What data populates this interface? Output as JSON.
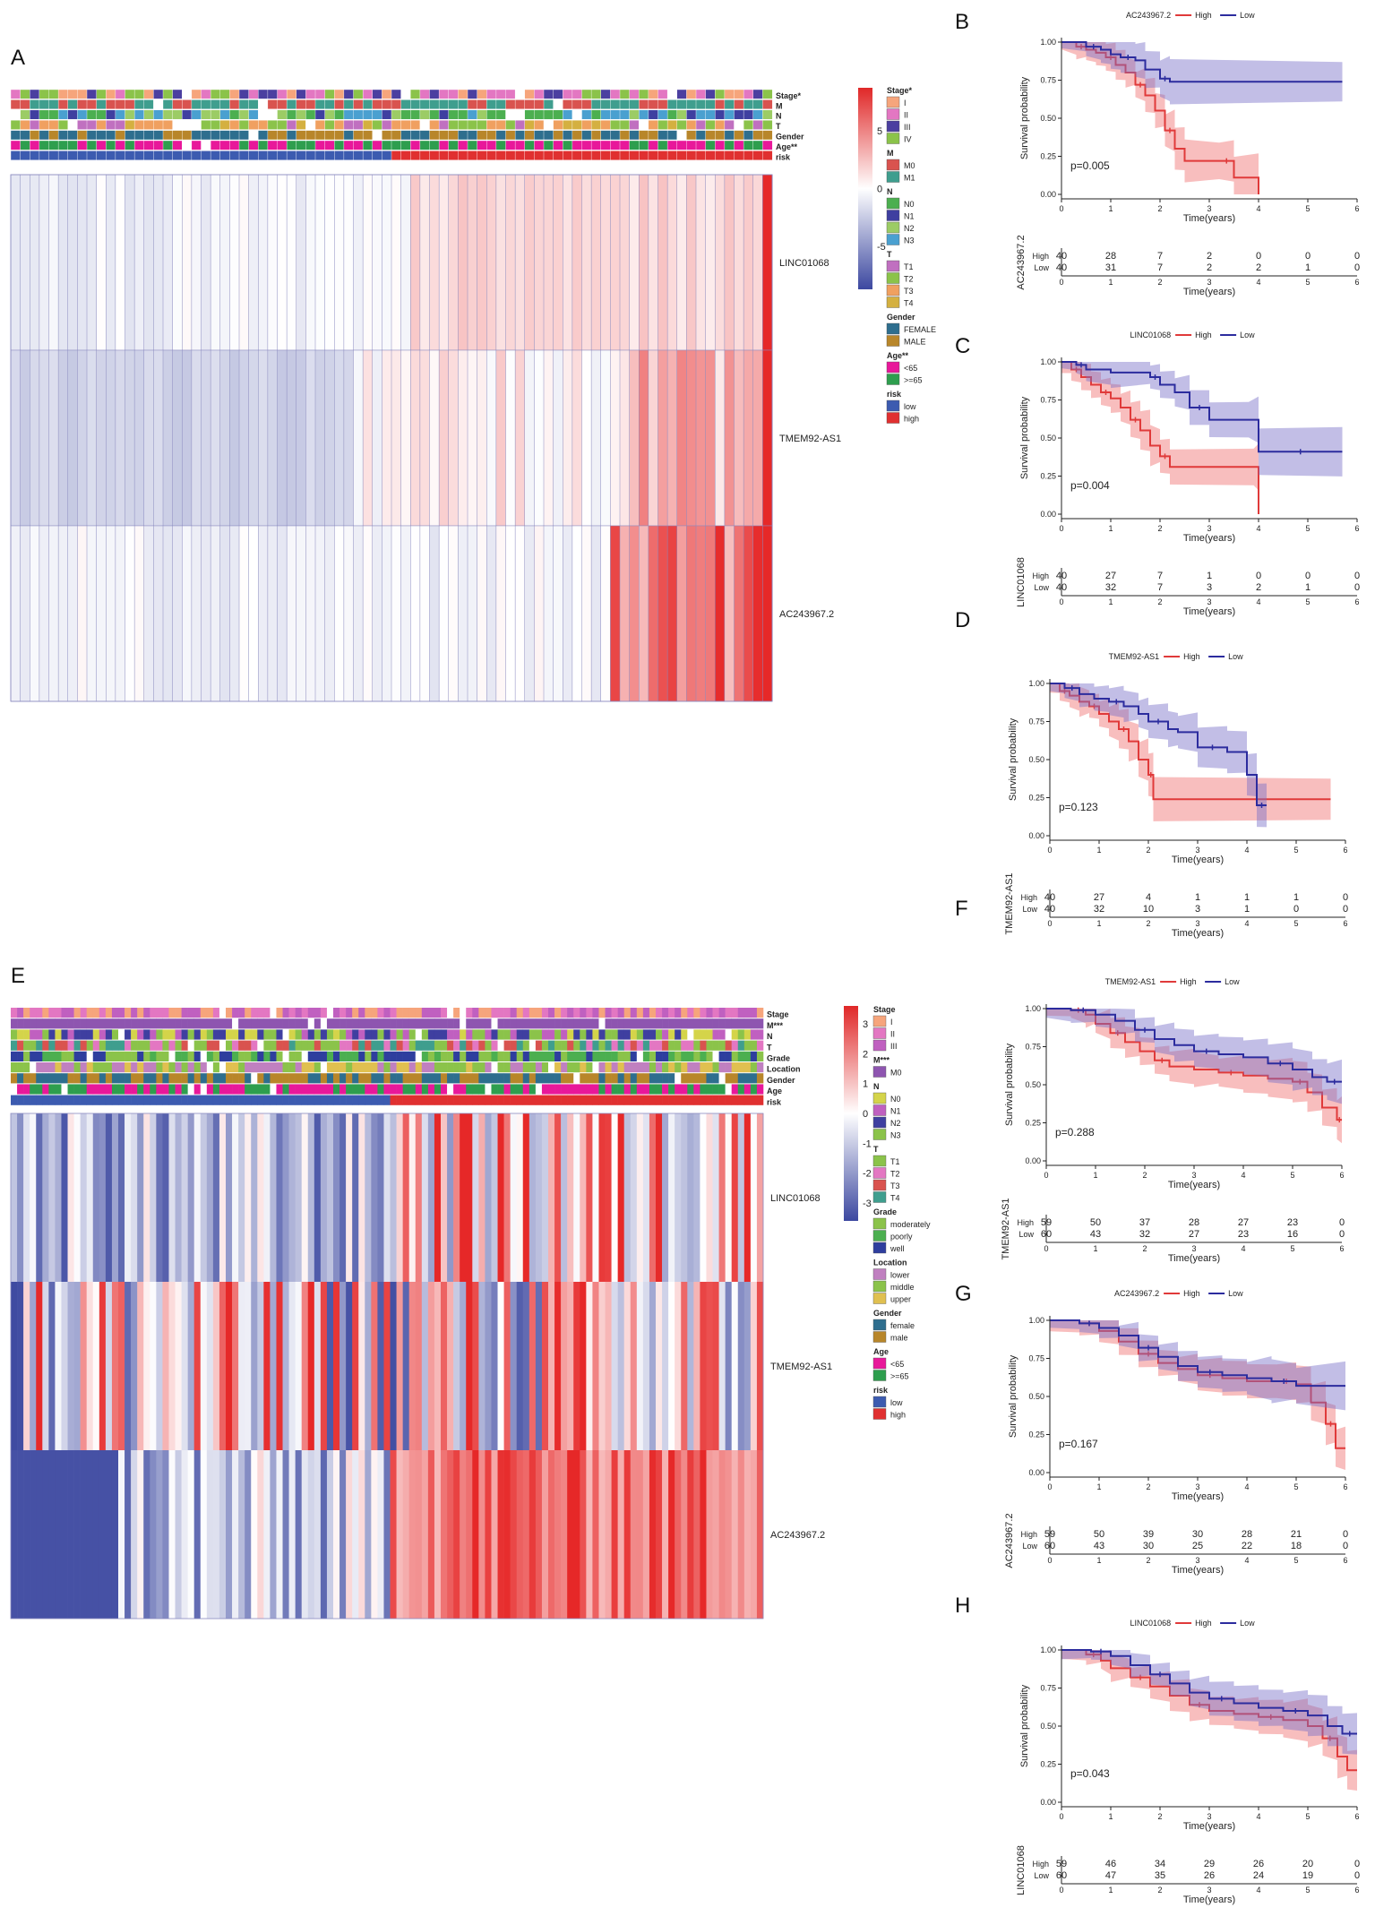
{
  "panel_labels": [
    "A",
    "B",
    "C",
    "D",
    "E",
    "F",
    "G",
    "H"
  ],
  "chart_data": [
    {
      "id": "A",
      "type": "heatmap",
      "rows": [
        "LINC01068",
        "TMEM92-AS1",
        "AC243967.2"
      ],
      "annotation_tracks": [
        "Stage*",
        "M",
        "N",
        "T",
        "Gender",
        "Age**",
        "risk"
      ],
      "n_samples": 80,
      "n_low": 40,
      "n_high": 40,
      "colorbar": {
        "range": [
          -5,
          5
        ],
        "ticks": [
          "5",
          "0",
          "-5"
        ]
      },
      "legend": [
        {
          "title": "Stage*",
          "items": [
            [
              "I",
              "#f6a57c"
            ],
            [
              "II",
              "#e377c2"
            ],
            [
              "III",
              "#4b3fa0"
            ],
            [
              "IV",
              "#8bc34a"
            ]
          ]
        },
        {
          "title": "M",
          "items": [
            [
              "M0",
              "#d9534f"
            ],
            [
              "M1",
              "#3f9e8e"
            ]
          ]
        },
        {
          "title": "N",
          "items": [
            [
              "N0",
              "#4caf50"
            ],
            [
              "N1",
              "#3f3fa0"
            ],
            [
              "N2",
              "#9ccc65"
            ],
            [
              "N3",
              "#4aa0d0"
            ]
          ]
        },
        {
          "title": "T",
          "items": [
            [
              "T1",
              "#c070c0"
            ],
            [
              "T2",
              "#8bc34a"
            ],
            [
              "T3",
              "#f0a060"
            ],
            [
              "T4",
              "#d4b040"
            ]
          ]
        },
        {
          "title": "Gender",
          "items": [
            [
              "FEMALE",
              "#2e6e8e"
            ],
            [
              "MALE",
              "#b8862a"
            ]
          ]
        },
        {
          "title": "Age**",
          "items": [
            [
              "<65",
              "#e8189a"
            ],
            [
              ">=65",
              "#2e9e4e"
            ]
          ]
        },
        {
          "title": "risk",
          "items": [
            [
              "low",
              "#3c5bb0"
            ],
            [
              "high",
              "#e03030"
            ]
          ]
        }
      ]
    },
    {
      "id": "B",
      "type": "line",
      "title": "AC243967.2",
      "legend": [
        "High",
        "Low"
      ],
      "p_value": "p=0.005",
      "xlabel": "Time(years)",
      "ylabel": "Survival probability",
      "xticks": [
        "0",
        "1",
        "2",
        "3",
        "4",
        "5",
        "6"
      ],
      "yticks": [
        "0.00",
        "0.25",
        "0.50",
        "0.75",
        "1.00"
      ],
      "xlim": [
        0,
        6
      ],
      "ylim": [
        0,
        1
      ],
      "series": [
        {
          "name": "High",
          "color": "#e03a3a",
          "x": [
            0,
            0.3,
            0.5,
            0.7,
            0.9,
            1.1,
            1.3,
            1.5,
            1.7,
            1.9,
            2.1,
            2.3,
            2.5,
            3.2,
            3.5,
            4.0
          ],
          "y": [
            1.0,
            0.97,
            0.95,
            0.93,
            0.9,
            0.85,
            0.8,
            0.72,
            0.65,
            0.55,
            0.42,
            0.3,
            0.22,
            0.22,
            0.11,
            0.0
          ]
        },
        {
          "name": "Low",
          "color": "#2c2c9e",
          "x": [
            0,
            0.5,
            0.8,
            1.0,
            1.2,
            1.5,
            1.7,
            2.0,
            2.2,
            5.7
          ],
          "y": [
            1.0,
            0.97,
            0.95,
            0.92,
            0.9,
            0.88,
            0.82,
            0.76,
            0.74,
            0.74
          ]
        }
      ],
      "risk_table": {
        "label": "AC243967.2",
        "High": [
          "40",
          "28",
          "7",
          "2",
          "0",
          "0",
          "0"
        ],
        "Low": [
          "40",
          "31",
          "7",
          "2",
          "2",
          "1",
          "0"
        ]
      }
    },
    {
      "id": "C",
      "type": "line",
      "title": "LINC01068",
      "legend": [
        "High",
        "Low"
      ],
      "p_value": "p=0.004",
      "xlabel": "Time(years)",
      "ylabel": "Survival probability",
      "xticks": [
        "0",
        "1",
        "2",
        "3",
        "4",
        "5",
        "6"
      ],
      "yticks": [
        "0.00",
        "0.25",
        "0.50",
        "0.75",
        "1.00"
      ],
      "xlim": [
        0,
        6
      ],
      "ylim": [
        0,
        1
      ],
      "series": [
        {
          "name": "High",
          "color": "#e03a3a",
          "x": [
            0,
            0.2,
            0.4,
            0.6,
            0.8,
            1.0,
            1.2,
            1.4,
            1.6,
            1.8,
            2.0,
            2.2,
            3.9,
            4.0
          ],
          "y": [
            1.0,
            0.95,
            0.9,
            0.85,
            0.8,
            0.76,
            0.7,
            0.62,
            0.55,
            0.45,
            0.38,
            0.31,
            0.31,
            0.0
          ]
        },
        {
          "name": "Low",
          "color": "#2c2c9e",
          "x": [
            0,
            0.3,
            0.5,
            1.0,
            1.8,
            2.0,
            2.3,
            2.6,
            3.0,
            3.8,
            4.0,
            5.7
          ],
          "y": [
            1.0,
            0.98,
            0.95,
            0.93,
            0.9,
            0.85,
            0.8,
            0.7,
            0.62,
            0.62,
            0.41,
            0.41
          ]
        }
      ],
      "risk_table": {
        "label": "LINC01068",
        "High": [
          "40",
          "27",
          "7",
          "1",
          "0",
          "0",
          "0"
        ],
        "Low": [
          "40",
          "32",
          "7",
          "3",
          "2",
          "1",
          "0"
        ]
      }
    },
    {
      "id": "D",
      "type": "line",
      "title": "TMEM92-AS1",
      "legend": [
        "High",
        "Low"
      ],
      "p_value": "p=0.123",
      "xlabel": "Time(years)",
      "ylabel": "Survival probability",
      "xticks": [
        "0",
        "1",
        "2",
        "3",
        "4",
        "5",
        "6"
      ],
      "yticks": [
        "0.00",
        "0.25",
        "0.50",
        "0.75",
        "1.00"
      ],
      "xlim": [
        0,
        6
      ],
      "ylim": [
        0,
        1
      ],
      "series": [
        {
          "name": "High",
          "color": "#e03a3a",
          "x": [
            0,
            0.2,
            0.4,
            0.6,
            0.8,
            1.0,
            1.2,
            1.4,
            1.6,
            1.8,
            2.0,
            2.1,
            5.7
          ],
          "y": [
            1.0,
            0.95,
            0.92,
            0.88,
            0.85,
            0.8,
            0.75,
            0.7,
            0.62,
            0.5,
            0.4,
            0.24,
            0.24
          ]
        },
        {
          "name": "Low",
          "color": "#2c2c9e",
          "x": [
            0,
            0.3,
            0.6,
            0.9,
            1.2,
            1.5,
            1.8,
            2.0,
            2.4,
            2.6,
            3.0,
            3.6,
            4.0,
            4.2,
            4.4
          ],
          "y": [
            1.0,
            0.97,
            0.93,
            0.9,
            0.88,
            0.85,
            0.8,
            0.75,
            0.7,
            0.68,
            0.58,
            0.55,
            0.4,
            0.2,
            0.2
          ]
        }
      ],
      "risk_table": {
        "label": "TMEM92-AS1",
        "High": [
          "40",
          "27",
          "4",
          "1",
          "1",
          "1",
          "0"
        ],
        "Low": [
          "40",
          "32",
          "10",
          "3",
          "1",
          "0",
          "0"
        ]
      }
    },
    {
      "id": "E",
      "type": "heatmap",
      "rows": [
        "LINC01068",
        "TMEM92-AS1",
        "AC243967.2"
      ],
      "annotation_tracks": [
        "Stage",
        "M***",
        "N",
        "T",
        "Grade",
        "Location",
        "Gender",
        "Age",
        "risk"
      ],
      "n_samples": 119,
      "n_low": 60,
      "n_high": 59,
      "colorbar": {
        "range": [
          -3,
          3
        ],
        "ticks": [
          "3",
          "2",
          "1",
          "0",
          "-1",
          "-2",
          "-3"
        ]
      },
      "legend": [
        {
          "title": "Stage",
          "items": [
            [
              "I",
              "#f6a57c"
            ],
            [
              "II",
              "#e377c2"
            ],
            [
              "III",
              "#c060c0"
            ]
          ]
        },
        {
          "title": "M***",
          "items": [
            [
              "M0",
              "#8e55b0"
            ]
          ]
        },
        {
          "title": "N",
          "items": [
            [
              "N0",
              "#d4d44a"
            ],
            [
              "N1",
              "#c060c0"
            ],
            [
              "N2",
              "#3f3fa0"
            ],
            [
              "N3",
              "#8bc34a"
            ]
          ]
        },
        {
          "title": "T",
          "items": [
            [
              "T1",
              "#8bc34a"
            ],
            [
              "T2",
              "#e377c2"
            ],
            [
              "T3",
              "#d9534f"
            ],
            [
              "T4",
              "#3f9e8e"
            ]
          ]
        },
        {
          "title": "Grade",
          "items": [
            [
              "moderately",
              "#8bc34a"
            ],
            [
              "poorly",
              "#4caf50"
            ],
            [
              "well",
              "#2e3e9e"
            ]
          ]
        },
        {
          "title": "Location",
          "items": [
            [
              "lower",
              "#c080c0"
            ],
            [
              "middle",
              "#8bc34a"
            ],
            [
              "upper",
              "#e0c050"
            ]
          ]
        },
        {
          "title": "Gender",
          "items": [
            [
              "female",
              "#2e6e8e"
            ],
            [
              "male",
              "#b8862a"
            ]
          ]
        },
        {
          "title": "Age",
          "items": [
            [
              "<65",
              "#e8189a"
            ],
            [
              ">=65",
              "#2e9e4e"
            ]
          ]
        },
        {
          "title": "risk",
          "items": [
            [
              "low",
              "#3c5bb0"
            ],
            [
              "high",
              "#e03030"
            ]
          ]
        }
      ]
    },
    {
      "id": "F",
      "type": "line",
      "title": "TMEM92-AS1",
      "legend": [
        "High",
        "Low"
      ],
      "p_value": "p=0.288",
      "xlabel": "Time(years)",
      "ylabel": "Survival probability",
      "xticks": [
        "0",
        "1",
        "2",
        "3",
        "4",
        "5",
        "6"
      ],
      "yticks": [
        "0.00",
        "0.25",
        "0.50",
        "0.75",
        "1.00"
      ],
      "xlim": [
        0,
        6
      ],
      "ylim": [
        0,
        1
      ],
      "series": [
        {
          "name": "High",
          "color": "#e03a3a",
          "x": [
            0,
            0.5,
            0.8,
            1.0,
            1.3,
            1.6,
            1.9,
            2.2,
            2.5,
            3.0,
            3.5,
            4.0,
            4.5,
            5.0,
            5.3,
            5.6,
            5.9,
            6.0
          ],
          "y": [
            1.0,
            0.99,
            0.96,
            0.9,
            0.84,
            0.78,
            0.72,
            0.66,
            0.62,
            0.6,
            0.58,
            0.56,
            0.54,
            0.52,
            0.45,
            0.35,
            0.27,
            0.27
          ]
        },
        {
          "name": "Low",
          "color": "#2c2c9e",
          "x": [
            0,
            0.5,
            1.0,
            1.4,
            1.8,
            2.2,
            2.6,
            3.0,
            3.5,
            4.0,
            4.5,
            5.0,
            5.4,
            5.7,
            6.0
          ],
          "y": [
            1.0,
            0.99,
            0.96,
            0.92,
            0.86,
            0.8,
            0.76,
            0.72,
            0.7,
            0.68,
            0.64,
            0.6,
            0.55,
            0.52,
            0.52
          ]
        }
      ],
      "risk_table": {
        "label": "TMEM92-AS1",
        "High": [
          "59",
          "50",
          "37",
          "28",
          "27",
          "23",
          "0"
        ],
        "Low": [
          "60",
          "43",
          "32",
          "27",
          "23",
          "16",
          "0"
        ]
      }
    },
    {
      "id": "G",
      "type": "line",
      "title": "AC243967.2",
      "legend": [
        "High",
        "Low"
      ],
      "p_value": "p=0.167",
      "xlabel": "Time(years)",
      "ylabel": "Survival probability",
      "xticks": [
        "0",
        "1",
        "2",
        "3",
        "4",
        "5",
        "6"
      ],
      "yticks": [
        "0.00",
        "0.25",
        "0.50",
        "0.75",
        "1.00"
      ],
      "xlim": [
        0,
        6
      ],
      "ylim": [
        0,
        1
      ],
      "series": [
        {
          "name": "High",
          "color": "#e03a3a",
          "x": [
            0,
            0.6,
            1.0,
            1.4,
            1.8,
            2.2,
            2.6,
            3.0,
            3.5,
            4.0,
            4.6,
            5.0,
            5.3,
            5.6,
            5.8,
            6.0
          ],
          "y": [
            1.0,
            0.98,
            0.93,
            0.86,
            0.78,
            0.72,
            0.68,
            0.64,
            0.62,
            0.6,
            0.6,
            0.58,
            0.46,
            0.32,
            0.16,
            0.16
          ]
        },
        {
          "name": "Low",
          "color": "#2c2c9e",
          "x": [
            0,
            0.6,
            1.0,
            1.4,
            1.8,
            2.2,
            2.6,
            3.0,
            3.5,
            4.0,
            4.5,
            5.0,
            6.0
          ],
          "y": [
            1.0,
            0.98,
            0.95,
            0.9,
            0.82,
            0.76,
            0.7,
            0.66,
            0.64,
            0.62,
            0.6,
            0.57,
            0.57
          ]
        }
      ],
      "risk_table": {
        "label": "AC243967.2",
        "High": [
          "59",
          "50",
          "39",
          "30",
          "28",
          "21",
          "0"
        ],
        "Low": [
          "60",
          "43",
          "30",
          "25",
          "22",
          "18",
          "0"
        ]
      }
    },
    {
      "id": "H",
      "type": "line",
      "title": "LINC01068",
      "legend": [
        "High",
        "Low"
      ],
      "p_value": "p=0.043",
      "xlabel": "Time(years)",
      "ylabel": "Survival probability",
      "xticks": [
        "0",
        "1",
        "2",
        "3",
        "4",
        "5",
        "6"
      ],
      "yticks": [
        "0.00",
        "0.25",
        "0.50",
        "0.75",
        "1.00"
      ],
      "xlim": [
        0,
        6
      ],
      "ylim": [
        0,
        1
      ],
      "series": [
        {
          "name": "High",
          "color": "#e03a3a",
          "x": [
            0,
            0.5,
            0.8,
            1.0,
            1.4,
            1.8,
            2.2,
            2.6,
            3.0,
            3.5,
            4.0,
            4.5,
            5.0,
            5.3,
            5.6,
            5.8,
            6.0
          ],
          "y": [
            1.0,
            0.97,
            0.93,
            0.88,
            0.82,
            0.76,
            0.7,
            0.64,
            0.6,
            0.58,
            0.56,
            0.54,
            0.5,
            0.42,
            0.3,
            0.21,
            0.21
          ]
        },
        {
          "name": "Low",
          "color": "#2c2c9e",
          "x": [
            0,
            0.6,
            1.0,
            1.4,
            1.8,
            2.2,
            2.6,
            3.0,
            3.5,
            4.0,
            4.5,
            5.0,
            5.4,
            5.7,
            6.0
          ],
          "y": [
            1.0,
            0.99,
            0.96,
            0.9,
            0.84,
            0.78,
            0.72,
            0.68,
            0.65,
            0.62,
            0.6,
            0.57,
            0.5,
            0.45,
            0.45
          ]
        }
      ],
      "risk_table": {
        "label": "LINC01068",
        "High": [
          "59",
          "46",
          "34",
          "29",
          "26",
          "20",
          "0"
        ],
        "Low": [
          "60",
          "47",
          "35",
          "26",
          "24",
          "19",
          "0"
        ]
      }
    }
  ]
}
